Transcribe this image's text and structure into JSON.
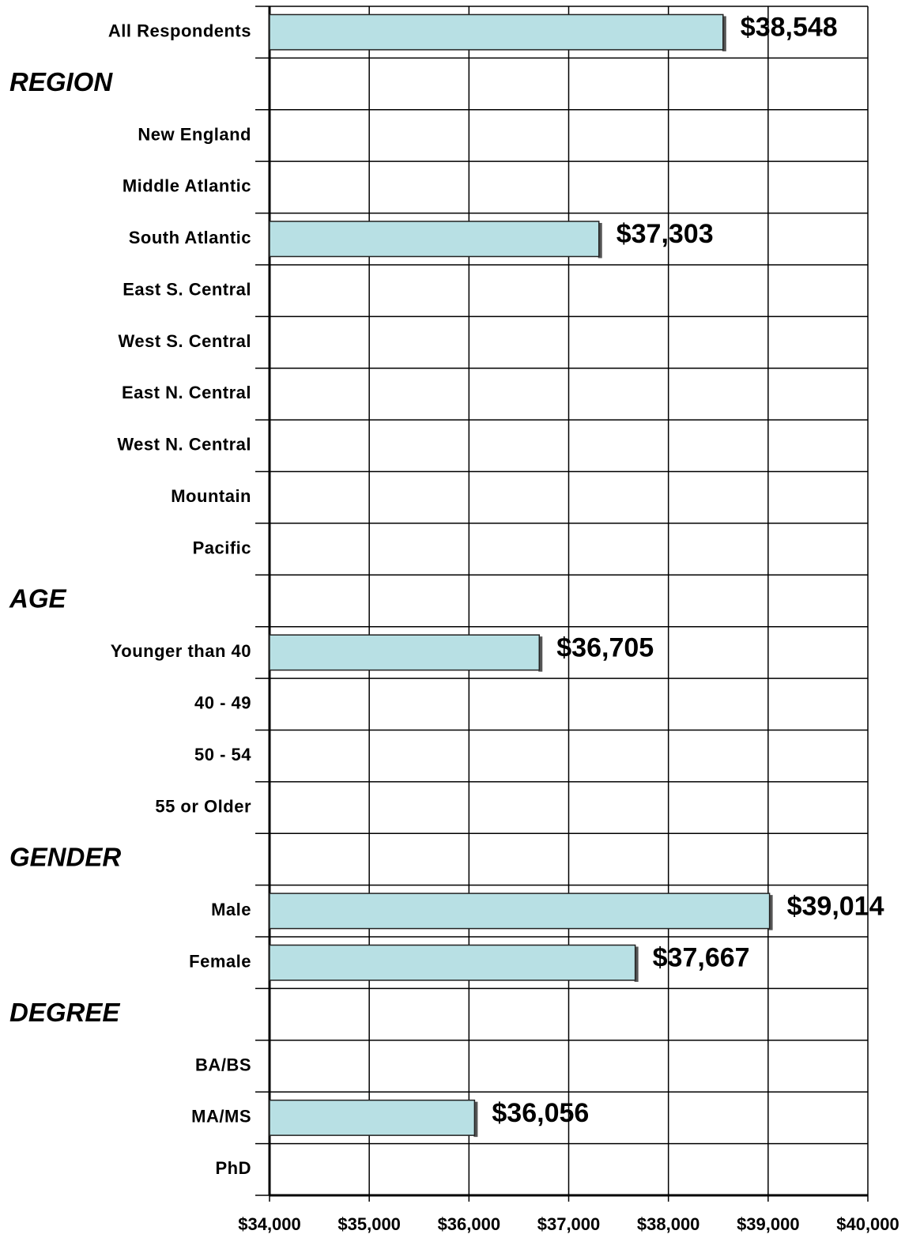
{
  "chart_data": {
    "type": "barh",
    "categories": [
      "All Respondents",
      "REGION",
      "New England",
      "Middle Atlantic",
      "South Atlantic",
      "East S. Central",
      "West S. Central",
      "East N. Central",
      "West N. Central",
      "Mountain",
      "Pacific",
      "AGE",
      "Younger than 40",
      "40 - 49",
      "50 - 54",
      "55 or Older",
      "GENDER",
      "Male",
      "Female",
      "DEGREE",
      "BA/BS",
      "MA/MS",
      "PhD"
    ],
    "values": [
      38548,
      null,
      null,
      null,
      37303,
      null,
      null,
      null,
      null,
      null,
      null,
      null,
      36705,
      null,
      null,
      null,
      null,
      39014,
      37667,
      null,
      null,
      36056,
      null
    ],
    "value_labels": [
      "$38,548",
      null,
      null,
      null,
      "$37,303",
      null,
      null,
      null,
      null,
      null,
      null,
      null,
      "$36,705",
      null,
      null,
      null,
      null,
      "$39,014",
      "$37,667",
      null,
      null,
      "$36,056",
      null
    ],
    "color": "#b8e0e4",
    "xlim": [
      34000,
      40000
    ],
    "xticks": [
      {
        "value": 34000,
        "label": "$34,000"
      },
      {
        "value": 35000,
        "label": "$35,000"
      },
      {
        "value": 36000,
        "label": "$36,000"
      },
      {
        "value": 37000,
        "label": "$37,000"
      },
      {
        "value": 38000,
        "label": "$38,000"
      },
      {
        "value": 39000,
        "label": "$39,000"
      },
      {
        "value": 40000,
        "label": "$40,000"
      }
    ],
    "grid": true
  }
}
